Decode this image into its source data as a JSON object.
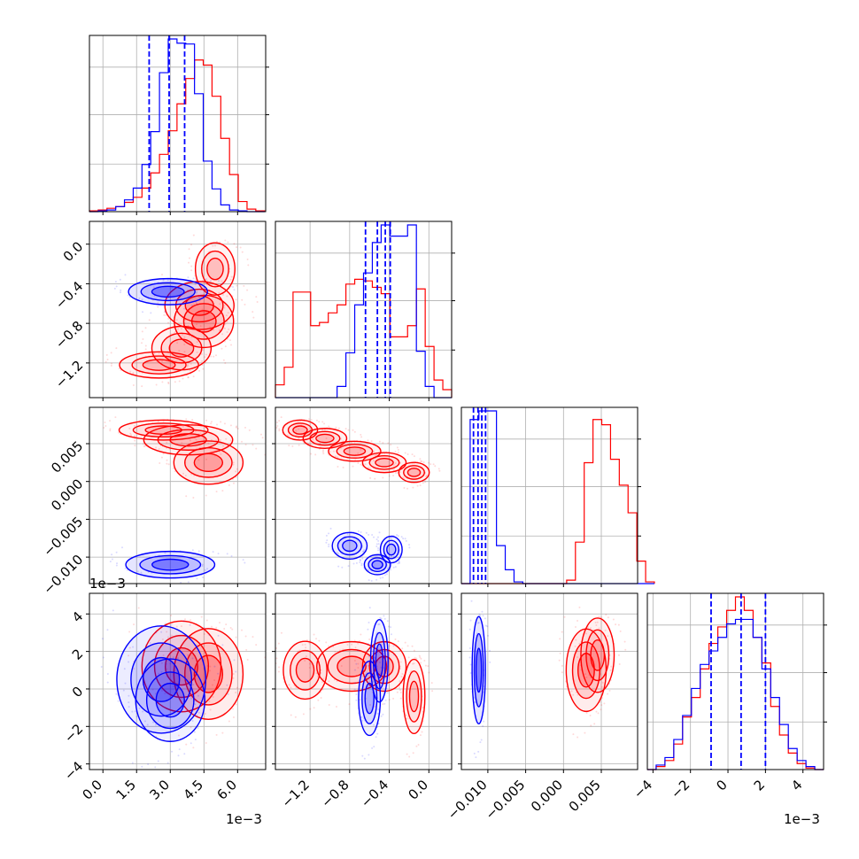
{
  "chart_data": {
    "type": "corner",
    "grid": true,
    "series": [
      {
        "color": "#ff0000"
      },
      {
        "color": "#0000ff"
      }
    ],
    "parameters": [
      {
        "range": [
          -0.0006,
          0.00725
        ],
        "ticks": [
          0.0,
          0.0015,
          0.003,
          0.0045,
          0.006
        ],
        "tick_labels": [
          "0.0",
          "1.5",
          "3.0",
          "4.5",
          "6.0"
        ],
        "offset_text": "1e−3"
      },
      {
        "range": [
          -0.00155,
          0.00023
        ],
        "ticks": [
          -0.0012,
          -0.0008,
          -0.0004,
          0.0
        ],
        "tick_labels": [
          "−1.2",
          "−0.8",
          "−0.4",
          "0.0"
        ],
        "offset_text": ""
      },
      {
        "range": [
          -0.0135,
          0.0098
        ],
        "ticks": [
          -0.01,
          -0.005,
          0.0,
          0.005
        ],
        "tick_labels": [
          "−0.010",
          "−0.005",
          "0.000",
          "0.005"
        ],
        "offset_text": ""
      },
      {
        "range": [
          -0.0043,
          0.0051
        ],
        "ticks": [
          -0.004,
          -0.002,
          0.0,
          0.002,
          0.004
        ],
        "tick_labels": [
          "−4",
          "−2",
          "0",
          "2",
          "4"
        ],
        "offset_text": "1e−3"
      }
    ],
    "y_tick_labels": {
      "1": [
        "0.0",
        "−0.4",
        "−0.8",
        "−1.2"
      ],
      "2": [
        "0.005",
        "0.000",
        "−0.005",
        "−0.010"
      ],
      "3": [
        "4",
        "2",
        "0",
        "−2",
        "−4"
      ]
    },
    "quantile_lines": [
      [
        0.00206,
        0.00295,
        0.00364
      ],
      [
        -0.00064,
        -0.00052,
        -0.00044,
        -0.00039
      ],
      [
        -0.0119,
        -0.0113,
        -0.0108,
        -0.0103
      ],
      [
        -0.0009,
        0.0007,
        0.002
      ]
    ],
    "histograms": {
      "red": [
        {
          "bin_start": -0.0006,
          "bin_width": 0.00039,
          "counts": [
            1,
            2,
            4,
            6,
            11,
            17,
            28,
            46,
            68,
            96,
            128,
            158,
            180,
            174,
            137,
            87,
            44,
            12,
            3,
            1
          ]
        },
        {
          "bin_start": -0.00155,
          "bin_width": 8.9e-05,
          "counts": [
            8,
            19,
            66,
            66,
            45,
            47,
            53,
            58,
            71,
            74,
            73,
            69,
            65,
            38,
            38,
            45,
            68,
            32,
            11,
            5
          ]
        },
        {
          "bin_start": -0.0135,
          "bin_width": 0.00116,
          "counts": [
            0,
            0,
            0,
            0,
            0,
            0,
            0,
            0,
            0,
            0,
            0,
            0,
            2,
            24,
            70,
            95,
            92,
            72,
            57,
            41,
            13,
            1
          ]
        },
        {
          "bin_start": -0.0043,
          "bin_width": 0.00047,
          "counts": [
            0,
            2,
            6,
            17,
            35,
            48,
            67,
            84,
            95,
            106,
            115,
            106,
            88,
            71,
            42,
            23,
            11,
            4,
            1,
            0
          ]
        }
      ],
      "blue": [
        {
          "bin_start": -0.0006,
          "bin_width": 0.00039,
          "counts": [
            0,
            1,
            2,
            6,
            14,
            28,
            56,
            95,
            165,
            205,
            200,
            199,
            140,
            60,
            27,
            8,
            2,
            1,
            0,
            0
          ]
        },
        {
          "bin_start": -0.00155,
          "bin_width": 8.9e-05,
          "counts": [
            0,
            0,
            0,
            0,
            0,
            0,
            0,
            7,
            28,
            58,
            78,
            97,
            108,
            101,
            101,
            108,
            29,
            7,
            0,
            0
          ]
        },
        {
          "bin_start": -0.0135,
          "bin_width": 0.00116,
          "counts": [
            0,
            95,
            100,
            100,
            22,
            8,
            1,
            0,
            0,
            0,
            0,
            0,
            0,
            0,
            0,
            0,
            0,
            0,
            0,
            0,
            0,
            0
          ]
        },
        {
          "bin_start": -0.0043,
          "bin_width": 0.00047,
          "counts": [
            0,
            3,
            8,
            20,
            36,
            54,
            70,
            79,
            88,
            97,
            100,
            100,
            88,
            67,
            48,
            30,
            14,
            6,
            2,
            0
          ]
        }
      ]
    },
    "contour_cells": {
      "1-0": {
        "red": [
          {
            "x": 0.0045,
            "y": -0.00078,
            "sx": 0.0006,
            "sy": 0.00012,
            "w": 0.45
          },
          {
            "x": 0.0043,
            "y": -0.00062,
            "sx": 0.0007,
            "sy": 0.00011,
            "w": 0.35
          },
          {
            "x": 0.0035,
            "y": -0.00105,
            "sx": 0.0006,
            "sy": 0.0001,
            "w": 0.3
          },
          {
            "x": 0.0025,
            "y": -0.00122,
            "sx": 0.0008,
            "sy": 6e-05,
            "w": 0.25
          },
          {
            "x": 0.005,
            "y": -0.00025,
            "sx": 0.0004,
            "sy": 0.00012,
            "w": 0.2
          }
        ],
        "blue": [
          {
            "x": 0.0029,
            "y": -0.00048,
            "sx": 0.0008,
            "sy": 6e-05,
            "w": 1.0
          }
        ]
      },
      "2-0": {
        "red": [
          {
            "x": 0.0047,
            "y": 0.0025,
            "sx": 0.0007,
            "sy": 0.0013,
            "w": 0.55
          },
          {
            "x": 0.0038,
            "y": 0.0055,
            "sx": 0.0009,
            "sy": 0.0009,
            "w": 0.25
          },
          {
            "x": 0.0027,
            "y": 0.0068,
            "sx": 0.0009,
            "sy": 0.0006,
            "w": 0.2
          }
        ],
        "blue": [
          {
            "x": 0.003,
            "y": -0.011,
            "sx": 0.0009,
            "sy": 0.0008,
            "w": 1.0
          }
        ]
      },
      "2-1": {
        "red": [
          {
            "x": -0.0013,
            "y": 0.0068,
            "sx": 8e-05,
            "sy": 0.0006,
            "w": 0.3
          },
          {
            "x": -0.00105,
            "y": 0.0057,
            "sx": 0.0001,
            "sy": 0.0006,
            "w": 0.25
          },
          {
            "x": -0.00075,
            "y": 0.004,
            "sx": 0.00012,
            "sy": 0.0006,
            "w": 0.3
          },
          {
            "x": -0.00045,
            "y": 0.0025,
            "sx": 0.0001,
            "sy": 0.0006,
            "w": 0.25
          },
          {
            "x": -0.00015,
            "y": 0.0012,
            "sx": 7e-05,
            "sy": 0.0006,
            "w": 0.3
          }
        ],
        "blue": [
          {
            "x": -0.00052,
            "y": -0.011,
            "sx": 6e-05,
            "sy": 0.0006,
            "w": 0.6
          },
          {
            "x": -0.0008,
            "y": -0.0085,
            "sx": 8e-05,
            "sy": 0.0008,
            "w": 0.3
          },
          {
            "x": -0.00038,
            "y": -0.009,
            "sx": 5e-05,
            "sy": 0.0008,
            "w": 0.2
          }
        ]
      },
      "3-0": {
        "red": [
          {
            "x": 0.0047,
            "y": 0.0008,
            "sx": 0.0007,
            "sy": 0.0011,
            "w": 0.6
          },
          {
            "x": 0.0035,
            "y": 0.0012,
            "sx": 0.0008,
            "sy": 0.0011,
            "w": 0.3
          }
        ],
        "blue": [
          {
            "x": 0.0026,
            "y": 0.0005,
            "sx": 0.0009,
            "sy": 0.0013,
            "w": 0.6
          },
          {
            "x": 0.003,
            "y": -0.0006,
            "sx": 0.0007,
            "sy": 0.001,
            "w": 0.3
          }
        ]
      },
      "3-1": {
        "red": [
          {
            "x": -0.00078,
            "y": 0.0012,
            "sx": 0.00016,
            "sy": 0.0006,
            "w": 0.4
          },
          {
            "x": -0.00125,
            "y": 0.001,
            "sx": 0.0001,
            "sy": 0.0007,
            "w": 0.25
          },
          {
            "x": -0.00045,
            "y": 0.0012,
            "sx": 0.0001,
            "sy": 0.0006,
            "w": 0.25
          },
          {
            "x": -0.00015,
            "y": -0.0004,
            "sx": 5e-05,
            "sy": 0.0009,
            "w": 0.25
          }
        ],
        "blue": [
          {
            "x": -0.0005,
            "y": 0.0015,
            "sx": 4e-05,
            "sy": 0.001,
            "w": 0.5
          },
          {
            "x": -0.0006,
            "y": -0.0005,
            "sx": 5e-05,
            "sy": 0.0009,
            "w": 0.4
          }
        ]
      },
      "3-2": {
        "red": [
          {
            "x": 0.003,
            "y": 0.001,
            "sx": 0.0012,
            "sy": 0.001,
            "w": 0.6
          },
          {
            "x": 0.0045,
            "y": 0.0018,
            "sx": 0.001,
            "sy": 0.0009,
            "w": 0.3
          }
        ],
        "blue": [
          {
            "x": -0.0112,
            "y": 0.001,
            "sx": 0.0004,
            "sy": 0.0013,
            "w": 1.0
          }
        ]
      }
    }
  }
}
